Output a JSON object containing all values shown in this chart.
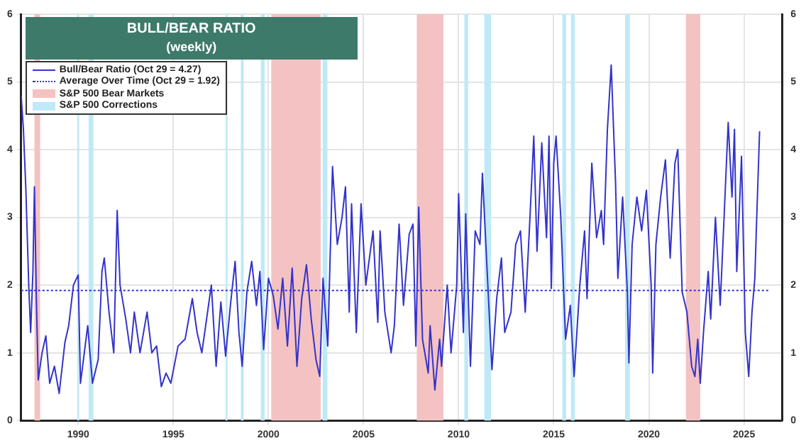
{
  "chart_data": {
    "type": "line",
    "title": "BULL/BEAR RATIO",
    "subtitle": "(weekly)",
    "xlim": [
      1987,
      2027
    ],
    "xticks": [
      1990,
      1995,
      2000,
      2005,
      2010,
      2015,
      2020,
      2025
    ],
    "ylim": [
      0,
      6
    ],
    "yticks": [
      0,
      1,
      2,
      3,
      4,
      5,
      6
    ],
    "y2lim": [
      0,
      6
    ],
    "y2ticks": [
      0,
      1,
      2,
      3,
      4,
      5,
      6
    ],
    "grid": true,
    "legend": "top left",
    "marker": "none",
    "series": [
      {
        "name": "Bull/Bear Ratio (Oct 29 = 4.27)",
        "color": "#3333cc",
        "line_style": "solid",
        "x": [
          1987.0,
          1987.12,
          1987.25,
          1987.4,
          1987.5,
          1987.62,
          1987.7,
          1987.8,
          1987.9,
          1988.1,
          1988.3,
          1988.5,
          1988.75,
          1989.0,
          1989.3,
          1989.5,
          1989.75,
          1990.0,
          1990.12,
          1990.5,
          1990.75,
          1991.05,
          1991.25,
          1991.37,
          1991.62,
          1991.87,
          1992.05,
          1992.2,
          1992.5,
          1992.75,
          1992.95,
          1993.25,
          1993.62,
          1993.87,
          1994.12,
          1994.37,
          1994.62,
          1994.87,
          1995.25,
          1995.62,
          1996.0,
          1996.25,
          1996.5,
          1997.0,
          1997.25,
          1997.5,
          1997.75,
          1998.0,
          1998.25,
          1998.45,
          1998.62,
          1998.87,
          1999.12,
          1999.37,
          1999.55,
          1999.75,
          2000.0,
          2000.25,
          2000.5,
          2000.75,
          2001.0,
          2001.25,
          2001.5,
          2001.75,
          2002.0,
          2002.25,
          2002.5,
          2002.7,
          2002.87,
          2003.12,
          2003.37,
          2003.62,
          2003.87,
          2004.05,
          2004.25,
          2004.37,
          2004.62,
          2004.87,
          2005.12,
          2005.5,
          2005.75,
          2005.87,
          2006.12,
          2006.45,
          2006.62,
          2006.87,
          2007.1,
          2007.4,
          2007.6,
          2007.75,
          2007.9,
          2008.1,
          2008.4,
          2008.5,
          2008.75,
          2009.0,
          2009.1,
          2009.4,
          2009.6,
          2009.9,
          2010.0,
          2010.25,
          2010.37,
          2010.62,
          2010.87,
          2011.12,
          2011.25,
          2011.5,
          2011.75,
          2012.0,
          2012.25,
          2012.42,
          2012.75,
          2013.0,
          2013.25,
          2013.5,
          2013.75,
          2013.95,
          2014.12,
          2014.37,
          2014.62,
          2014.75,
          2014.87,
          2015.0,
          2015.12,
          2015.37,
          2015.62,
          2015.87,
          2016.07,
          2016.37,
          2016.62,
          2016.75,
          2017.0,
          2017.25,
          2017.5,
          2017.62,
          2017.82,
          2018.02,
          2018.25,
          2018.37,
          2018.62,
          2018.87,
          2018.95,
          2019.12,
          2019.37,
          2019.62,
          2019.87,
          2020.12,
          2020.2,
          2020.37,
          2020.62,
          2020.87,
          2021.12,
          2021.37,
          2021.52,
          2021.75,
          2022.0,
          2022.25,
          2022.42,
          2022.57,
          2022.7,
          2022.87,
          2023.12,
          2023.25,
          2023.5,
          2023.75,
          2024.0,
          2024.17,
          2024.37,
          2024.5,
          2024.62,
          2024.87,
          2025.07,
          2025.25,
          2025.42,
          2025.57,
          2025.67,
          2025.82
        ],
        "values": [
          4.8,
          4.3,
          3.4,
          2.0,
          1.3,
          2.2,
          3.45,
          1.8,
          0.6,
          1.0,
          1.25,
          0.55,
          0.8,
          0.4,
          1.15,
          1.4,
          2.0,
          2.15,
          0.55,
          1.4,
          0.55,
          0.9,
          2.2,
          2.4,
          1.6,
          1.0,
          3.1,
          2.0,
          1.5,
          1.0,
          1.6,
          1.0,
          1.6,
          1.0,
          1.1,
          0.5,
          0.7,
          0.55,
          1.1,
          1.2,
          1.8,
          1.3,
          1.0,
          2.0,
          0.8,
          1.75,
          0.95,
          1.7,
          2.35,
          1.3,
          0.8,
          1.9,
          2.35,
          1.7,
          2.2,
          1.05,
          2.1,
          1.85,
          1.35,
          2.1,
          1.1,
          2.25,
          0.8,
          1.8,
          2.3,
          1.5,
          0.9,
          0.65,
          2.1,
          1.1,
          3.75,
          2.6,
          3.0,
          3.45,
          1.6,
          3.2,
          1.3,
          3.2,
          2.0,
          2.8,
          1.45,
          2.8,
          1.6,
          1.0,
          1.4,
          2.9,
          1.7,
          2.75,
          2.9,
          1.1,
          3.15,
          1.2,
          0.7,
          1.4,
          0.45,
          1.2,
          0.8,
          2.0,
          1.0,
          2.0,
          3.35,
          1.3,
          3.05,
          0.8,
          2.8,
          2.6,
          3.65,
          2.2,
          0.75,
          1.8,
          2.4,
          1.3,
          1.6,
          2.6,
          2.8,
          1.6,
          3.0,
          4.2,
          2.5,
          4.1,
          2.7,
          4.2,
          1.95,
          3.8,
          4.2,
          3.0,
          1.2,
          1.7,
          0.65,
          2.0,
          2.8,
          1.8,
          3.8,
          2.7,
          3.1,
          2.6,
          4.3,
          5.25,
          3.5,
          2.1,
          3.3,
          1.9,
          0.85,
          2.6,
          3.3,
          2.8,
          3.4,
          2.0,
          0.7,
          2.6,
          3.3,
          3.85,
          2.4,
          3.8,
          4.0,
          1.9,
          1.6,
          0.8,
          0.65,
          1.2,
          0.55,
          1.3,
          2.2,
          1.5,
          3.0,
          1.7,
          3.3,
          4.4,
          3.3,
          4.3,
          2.2,
          3.9,
          1.3,
          0.65,
          1.6,
          2.1,
          3.0,
          4.27
        ]
      },
      {
        "name": "Average Over Time (Oct 29 = 1.92)",
        "color": "#3333cc",
        "line_style": "dotted",
        "x": [
          1987.0,
          2026.3
        ],
        "values": [
          1.92,
          1.92
        ]
      }
    ],
    "bands": [
      {
        "axis": "x",
        "from": 1987.7,
        "to": 1988.0,
        "label": "S&P 500 Bear Markets",
        "color": "#f4c2c2"
      },
      {
        "axis": "x",
        "from": 2000.15,
        "to": 2002.75,
        "color": "#f4c2c2"
      },
      {
        "axis": "x",
        "from": 2007.8,
        "to": 2009.2,
        "color": "#f4c2c2"
      },
      {
        "axis": "x",
        "from": 2021.95,
        "to": 2022.7,
        "color": "#f4c2c2"
      },
      {
        "axis": "x",
        "from": 1989.95,
        "to": 1990.05,
        "label": "S&P 500 Corrections",
        "color": "#bfe9f7"
      },
      {
        "axis": "x",
        "from": 1990.55,
        "to": 1990.8,
        "color": "#bfe9f7"
      },
      {
        "axis": "x",
        "from": 1997.75,
        "to": 1997.85,
        "color": "#bfe9f7"
      },
      {
        "axis": "x",
        "from": 1998.55,
        "to": 1998.7,
        "color": "#bfe9f7"
      },
      {
        "axis": "x",
        "from": 1999.6,
        "to": 1999.8,
        "color": "#bfe9f7"
      },
      {
        "axis": "x",
        "from": 2002.85,
        "to": 2003.1,
        "color": "#bfe9f7"
      },
      {
        "axis": "x",
        "from": 2010.3,
        "to": 2010.5,
        "color": "#bfe9f7"
      },
      {
        "axis": "x",
        "from": 2011.35,
        "to": 2011.7,
        "color": "#bfe9f7"
      },
      {
        "axis": "x",
        "from": 2015.45,
        "to": 2015.65,
        "color": "#bfe9f7"
      },
      {
        "axis": "x",
        "from": 2015.9,
        "to": 2016.1,
        "color": "#bfe9f7"
      },
      {
        "axis": "x",
        "from": 2018.75,
        "to": 2019.0,
        "color": "#bfe9f7"
      }
    ]
  }
}
